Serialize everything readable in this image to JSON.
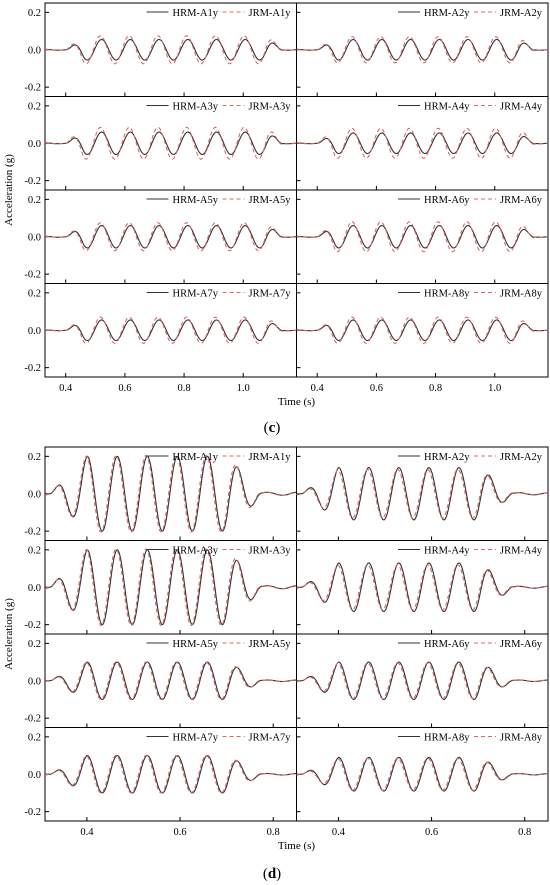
{
  "chart_data": [
    {
      "panel": "c",
      "type": "line",
      "ylabel": "Acceleration (g)",
      "xlabel": "Time (s)",
      "ylim": [
        -0.25,
        0.25
      ],
      "yticks": [
        "0.2",
        "0.0",
        "-0.2"
      ],
      "xlim": [
        0.33,
        1.18
      ],
      "xticks": [
        "0.4",
        "0.6",
        "0.8",
        "1.0"
      ],
      "signal": {
        "f": 10.3,
        "t_start": 0.4,
        "t_end": 1.14,
        "ramp": 0.06
      },
      "subplots": [
        {
          "legend": [
            "HRM-A1y",
            "JRM-A1y"
          ],
          "amp": 0.055,
          "ref_amp": 0.075
        },
        {
          "legend": [
            "HRM-A2y",
            "JRM-A2y"
          ],
          "amp": 0.055,
          "ref_amp": 0.07
        },
        {
          "legend": [
            "HRM-A3y",
            "JRM-A3y"
          ],
          "amp": 0.06,
          "ref_amp": 0.085
        },
        {
          "legend": [
            "HRM-A4y",
            "JRM-A4y"
          ],
          "amp": 0.055,
          "ref_amp": 0.08
        },
        {
          "legend": [
            "HRM-A5y",
            "JRM-A5y"
          ],
          "amp": 0.06,
          "ref_amp": 0.075
        },
        {
          "legend": [
            "HRM-A6y",
            "JRM-A6y"
          ],
          "amp": 0.06,
          "ref_amp": 0.08
        },
        {
          "legend": [
            "HRM-A7y",
            "JRM-A7y"
          ],
          "amp": 0.055,
          "ref_amp": 0.07
        },
        {
          "legend": [
            "HRM-A8y",
            "JRM-A8y"
          ],
          "amp": 0.055,
          "ref_amp": 0.07
        }
      ],
      "series_styles": [
        {
          "color": "#333333",
          "dash": "solid"
        },
        {
          "color": "#e06666",
          "dash": "dashed"
        }
      ]
    },
    {
      "panel": "d",
      "type": "line",
      "ylabel": "Acceleration (g)",
      "xlabel": "Time (s)",
      "ylim": [
        -0.25,
        0.25
      ],
      "yticks": [
        "0.2",
        "0.0",
        "-0.2"
      ],
      "xlim": [
        0.31,
        0.85
      ],
      "xticks": [
        "0.4",
        "0.6",
        "0.8"
      ],
      "signal": {
        "f": 15.5,
        "t_start": 0.32,
        "t_end": 0.78,
        "ramp": 0.08
      },
      "subplots": [
        {
          "legend": [
            "HRM-A1y",
            "JRM-A1y"
          ],
          "amp": 0.2,
          "ref_amp": 0.205
        },
        {
          "legend": [
            "HRM-A2y",
            "JRM-A2y"
          ],
          "amp": 0.14,
          "ref_amp": 0.13
        },
        {
          "legend": [
            "HRM-A3y",
            "JRM-A3y"
          ],
          "amp": 0.2,
          "ref_amp": 0.205
        },
        {
          "legend": [
            "HRM-A4y",
            "JRM-A4y"
          ],
          "amp": 0.13,
          "ref_amp": 0.12
        },
        {
          "legend": [
            "HRM-A5y",
            "JRM-A5y"
          ],
          "amp": 0.1,
          "ref_amp": 0.1
        },
        {
          "legend": [
            "HRM-A6y",
            "JRM-A6y"
          ],
          "amp": 0.1,
          "ref_amp": 0.095
        },
        {
          "legend": [
            "HRM-A7y",
            "JRM-A7y"
          ],
          "amp": 0.1,
          "ref_amp": 0.1
        },
        {
          "legend": [
            "HRM-A8y",
            "JRM-A8y"
          ],
          "amp": 0.09,
          "ref_amp": 0.085
        }
      ],
      "series_styles": [
        {
          "color": "#333333",
          "dash": "solid"
        },
        {
          "color": "#e06666",
          "dash": "dashed"
        }
      ]
    }
  ],
  "labels": {
    "panel_c": "c",
    "panel_d": "d",
    "paren_open": "(",
    "paren_close": ")"
  }
}
